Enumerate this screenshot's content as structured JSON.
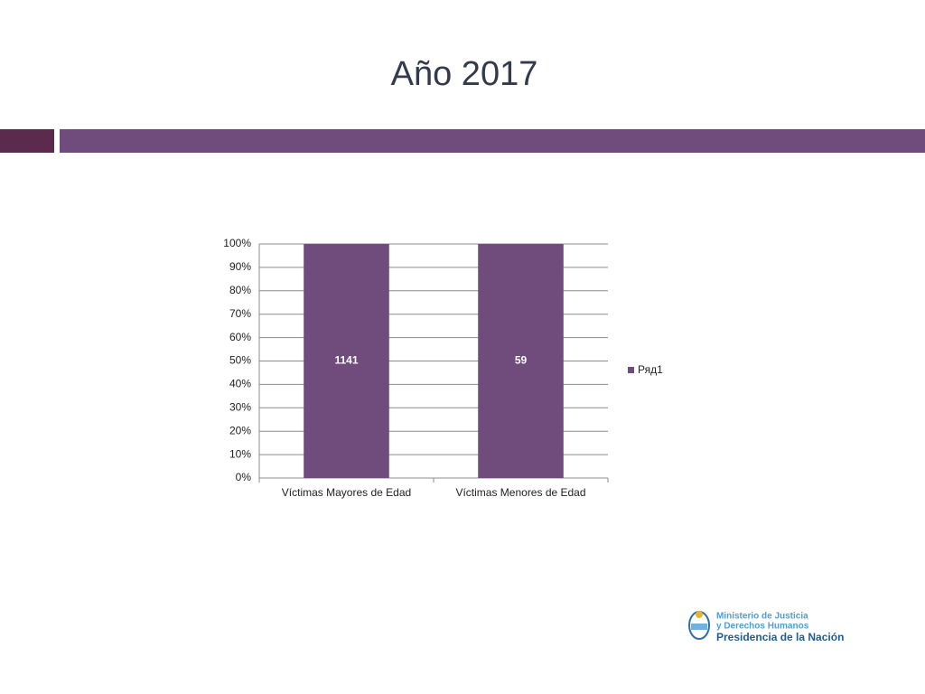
{
  "chart_data": {
    "type": "bar",
    "stacking": "percent",
    "title": "Año 2017",
    "categories": [
      "Víctimas Mayores de Edad",
      "Víctimas Menores de Edad"
    ],
    "series": [
      {
        "name": "Ряд1",
        "color": "#704c7c",
        "values": [
          1141,
          59
        ]
      }
    ],
    "ylim": [
      0,
      100
    ],
    "yticks": [
      {
        "value": 0,
        "label": "0%"
      },
      {
        "value": 10,
        "label": "10%"
      },
      {
        "value": 20,
        "label": "20%"
      },
      {
        "value": 30,
        "label": "30%"
      },
      {
        "value": 40,
        "label": "40%"
      },
      {
        "value": 50,
        "label": "50%"
      },
      {
        "value": 60,
        "label": "60%"
      },
      {
        "value": 70,
        "label": "70%"
      },
      {
        "value": 80,
        "label": "80%"
      },
      {
        "value": 90,
        "label": "90%"
      },
      {
        "value": 100,
        "label": "100%"
      }
    ],
    "grid": true,
    "legend": "right"
  },
  "logo": {
    "lines": [
      "Ministerio de Justicia",
      "y Derechos Humanos"
    ],
    "name": "Presidencia de la Nación"
  }
}
